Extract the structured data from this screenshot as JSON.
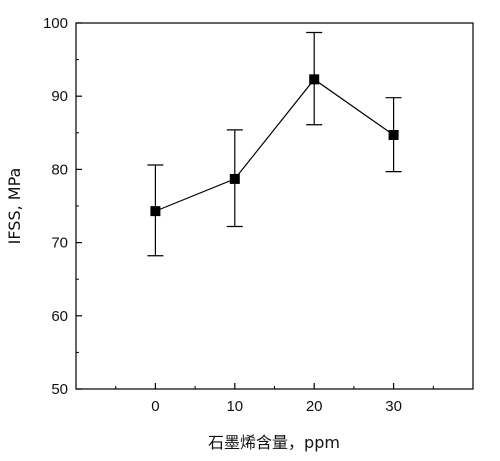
{
  "chart_data": {
    "type": "line",
    "title": "",
    "xlabel": "石墨烯含量，ppm",
    "ylabel": "IFSS, MPa",
    "x": [
      0,
      10,
      20,
      30
    ],
    "x_ticks": [
      "0",
      "10",
      "20",
      "30"
    ],
    "xlim": [
      -10,
      40
    ],
    "ylim": [
      50,
      100
    ],
    "y_ticks": [
      "50",
      "60",
      "70",
      "80",
      "90",
      "100"
    ],
    "grid": false,
    "legend": "none",
    "marker": "square",
    "colors": {
      "line": "#000000",
      "marker": "#000000"
    },
    "series": [
      {
        "values": [
          74.3,
          78.7,
          92.3,
          84.7
        ],
        "error_low": [
          68.2,
          72.2,
          86.1,
          79.7
        ],
        "error_high": [
          80.6,
          85.4,
          98.7,
          89.8
        ]
      }
    ]
  }
}
